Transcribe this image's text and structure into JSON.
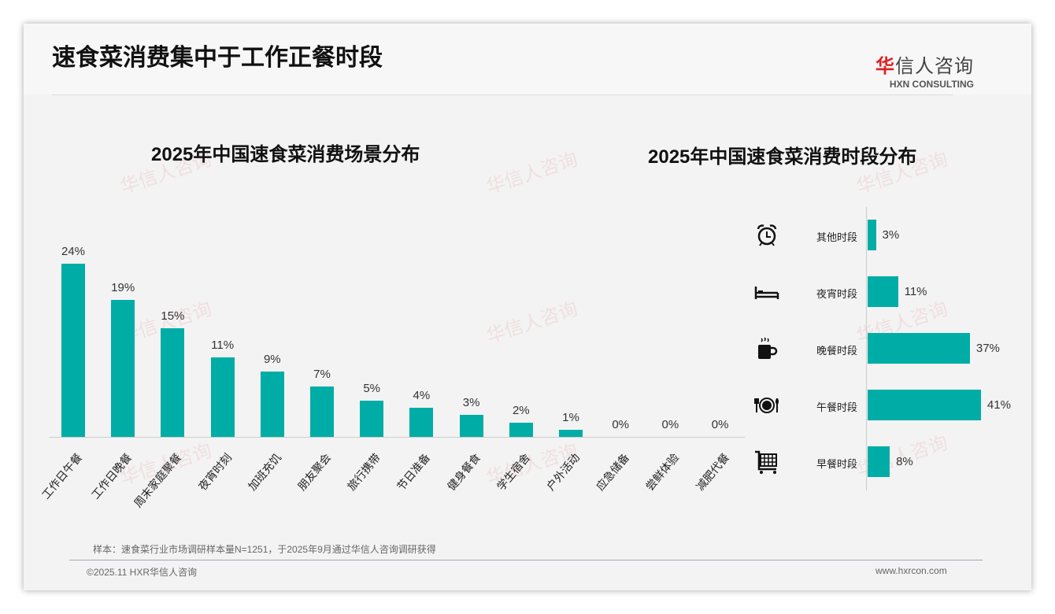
{
  "header": {
    "title": "速食菜消费集中于工作正餐时段",
    "logo_cn_red": "华",
    "logo_cn": "信人咨询",
    "logo_en": "HXN CONSULTING"
  },
  "watermark": "华信人咨询",
  "chart_data": [
    {
      "type": "bar",
      "title": "2025年中国速食菜消费场景分布",
      "categories": [
        "工作日午餐",
        "工作日晚餐",
        "周末家庭聚餐",
        "夜宵时刻",
        "加班充饥",
        "朋友聚会",
        "旅行携带",
        "节日准备",
        "健身餐食",
        "学生宿舍",
        "户外活动",
        "应急储备",
        "尝鲜体验",
        "减肥代餐"
      ],
      "values": [
        24,
        19,
        15,
        11,
        9,
        7,
        5,
        4,
        3,
        2,
        1,
        0,
        0,
        0
      ],
      "labels": [
        "24%",
        "19%",
        "15%",
        "11%",
        "9%",
        "7%",
        "5%",
        "4%",
        "3%",
        "2%",
        "1%",
        "0%",
        "0%",
        "0%"
      ],
      "unit": "%",
      "color": "#00ada6"
    },
    {
      "type": "bar",
      "orientation": "horizontal",
      "title": "2025年中国速食菜消费时段分布",
      "categories": [
        "其他时段",
        "夜宵时段",
        "晚餐时段",
        "午餐时段",
        "早餐时段"
      ],
      "icons": [
        "alarm-clock-icon",
        "bed-icon",
        "coffee-mug-icon",
        "plate-cutlery-icon",
        "shopping-cart-icon"
      ],
      "values": [
        3,
        11,
        37,
        41,
        8
      ],
      "labels": [
        "3%",
        "11%",
        "37%",
        "41%",
        "8%"
      ],
      "unit": "%",
      "color": "#00ada6"
    }
  ],
  "footer": {
    "note": "样本：速食菜行业市场调研样本量N=1251，于2025年9月通过华信人咨询调研获得",
    "copyright": "©2025.11 HXR华信人咨询",
    "url": "www.hxrcon.com"
  }
}
